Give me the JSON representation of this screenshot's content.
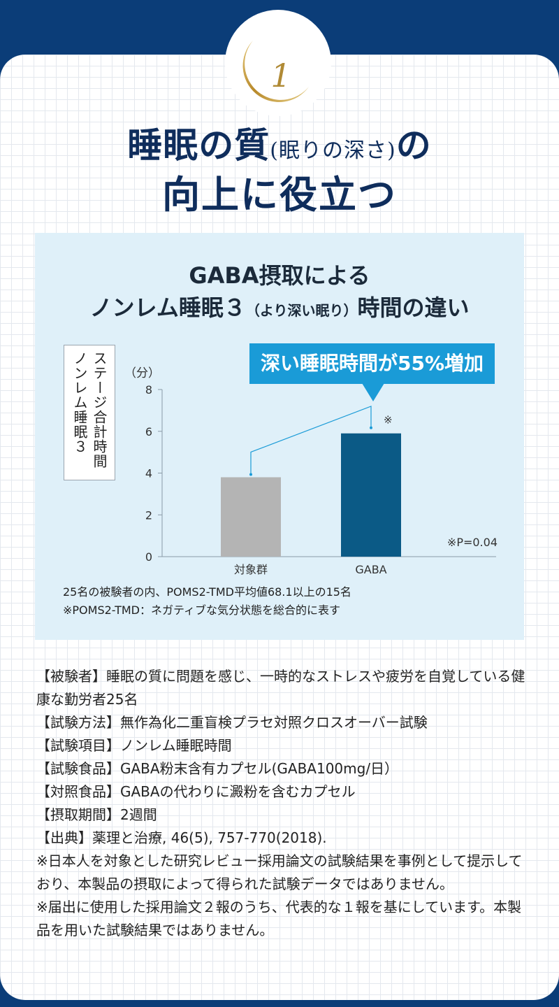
{
  "badge": {
    "number": "1"
  },
  "heading": {
    "line1_main": "睡眠の質",
    "line1_paren": "(眠りの深さ)",
    "line1_end": "の",
    "line2": "向上に役立つ"
  },
  "panel": {
    "title_line1": "GABA摂取による",
    "title_line2_main": "ノンレム睡眠３",
    "title_line2_paren": "（より深い眠り）",
    "title_line2_end": "時間の違い",
    "ylabel": "ステージ合計時間ノンレム睡眠３",
    "unit": "（分）",
    "callout": "深い睡眠時間が55%増加",
    "significance_mark": "※",
    "pvalue": "※P=0.04",
    "note1": "25名の被験者の内、POMS2-TMD平均値68.1以上の15名",
    "note2": "※POMS2-TMD：ネガティブな気分状態を総合的に表す"
  },
  "chart_data": {
    "type": "bar",
    "title": "GABA摂取によるノンレム睡眠３（より深い眠り）時間の違い",
    "categories": [
      "対象群",
      "GABA"
    ],
    "values": [
      3.8,
      5.9
    ],
    "ylabel": "ステージ合計時間ノンレム睡眠３（分）",
    "xlabel": "",
    "ylim": [
      0,
      8
    ],
    "yticks": [
      0,
      2,
      4,
      6,
      8
    ],
    "colors": [
      "#b4b4b4",
      "#0b5a86"
    ],
    "grid": false
  },
  "body": [
    "【被験者】睡眠の質に問題を感じ、一時的なストレスや疲労を自覚している健康な勤労者25名",
    "【試験方法】無作為化二重盲検プラセ対照クロスオーバー試験",
    "【試験項目】ノンレム睡眠時間",
    "【試験食品】GABA粉末含有カプセル(GABA100mg/日）",
    "【対照食品】GABAの代わりに澱粉を含むカプセル",
    "【摂取期間】2週間",
    "【出典】薬理と治療, 46(5), 757-770(2018).",
    "※日本人を対象とした研究レビュー採用論文の試験結果を事例として提示しており、本製品の摂取によって得られた試験データではありません。",
    "※届出に使用した採用論文２報のうち、代表的な１報を基にしています。本製品を用いた試験結果ではありません。"
  ],
  "colors": {
    "navy": "#0b3d78",
    "accent_blue": "#1a9bd7",
    "gold": "#c9a13c",
    "panel_bg": "#dff0f9"
  }
}
